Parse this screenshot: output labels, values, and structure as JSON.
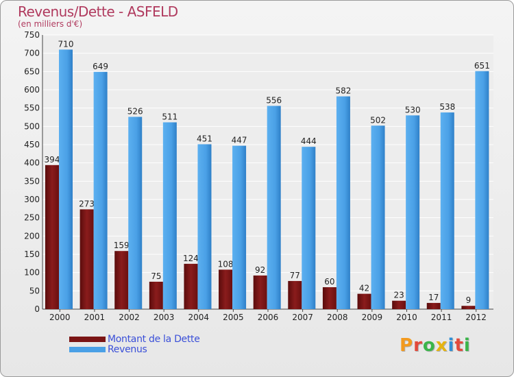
{
  "title": "Revenus/Dette - ASFELD",
  "subtitle": "(en milliers d'€)",
  "colors": {
    "debt": "#7a1414",
    "revenue": "#4aa0e6",
    "title": "#b03a5e",
    "legend_text": "#3a4fd8"
  },
  "legend": {
    "debt_label": "Montant de la Dette",
    "revenue_label": "Revenus"
  },
  "logo": {
    "text": "Proxiti"
  },
  "chart_data": {
    "type": "bar",
    "title": "Revenus/Dette - ASFELD",
    "ylabel": "(en milliers d'€)",
    "categories": [
      "2000",
      "2001",
      "2002",
      "2003",
      "2004",
      "2005",
      "2006",
      "2007",
      "2008",
      "2009",
      "2010",
      "2011",
      "2012"
    ],
    "series": [
      {
        "name": "Montant de la Dette",
        "values": [
          394,
          273,
          159,
          75,
          124,
          108,
          92,
          77,
          60,
          42,
          23,
          17,
          9
        ]
      },
      {
        "name": "Revenus",
        "values": [
          710,
          649,
          526,
          511,
          451,
          447,
          556,
          444,
          582,
          502,
          530,
          538,
          651
        ]
      }
    ],
    "ylim": [
      0,
      750
    ],
    "yticks": [
      0,
      50,
      100,
      150,
      200,
      250,
      300,
      350,
      400,
      450,
      500,
      550,
      600,
      650,
      700,
      750
    ],
    "grid": true
  }
}
